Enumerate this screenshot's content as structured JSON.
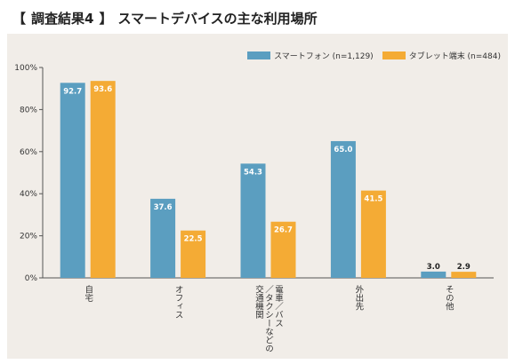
{
  "header": {
    "bracket_open": "【",
    "tag": "調査結果4",
    "bracket_close": "】",
    "title": "スマートデバイスの主な利用場所"
  },
  "colors": {
    "smartphone": "#5b9ec0",
    "tablet": "#f4ab35",
    "axis": "#555555",
    "grid": "#cfcac4"
  },
  "chart_data": {
    "type": "bar",
    "title": "スマートデバイスの主な利用場所",
    "categories": [
      "自宅",
      "オフィス",
      "電車／バス／タクシーなどの交通機関",
      "外出先",
      "その他"
    ],
    "series": [
      {
        "name": "スマートフォン (n=1,129)",
        "values": [
          92.7,
          37.6,
          54.3,
          65.0,
          3.0
        ],
        "labels": [
          "92.7",
          "37.6",
          "54.3",
          "65.0",
          "3.0"
        ]
      },
      {
        "name": "タブレット端末 (n=484)",
        "values": [
          93.6,
          22.5,
          26.7,
          41.5,
          2.9
        ],
        "labels": [
          "93.6",
          "22.5",
          "26.7",
          "41.5",
          "2.9"
        ]
      }
    ],
    "ylim": [
      0,
      100
    ],
    "yticks": [
      "0%",
      "20%",
      "40%",
      "60%",
      "80%",
      "100%"
    ],
    "category_lines": [
      [
        "自宅"
      ],
      [
        "オフィス"
      ],
      [
        "電車／バス",
        "／タクシーなどの",
        "交通機関"
      ],
      [
        "外出先"
      ],
      [
        "その他"
      ]
    ],
    "legend_position": "top-right",
    "grid": false
  }
}
